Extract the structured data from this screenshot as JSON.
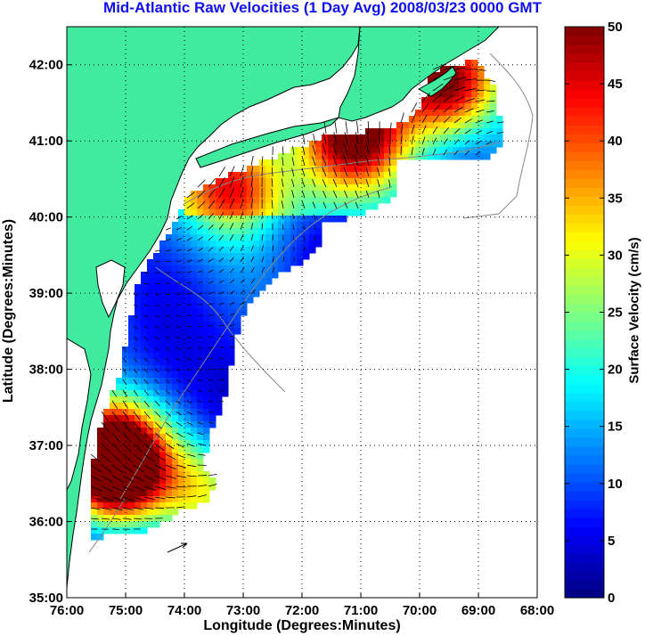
{
  "title": "Mid-Atlantic Raw Velocities (1 Day Avg) 2008/03/23 0000 GMT",
  "axes": {
    "xlabel": "Longitude (Degrees:Minutes)",
    "ylabel": "Latitude (Degrees:Minutes)",
    "x_ticks": [
      "76:00",
      "75:00",
      "74:00",
      "73:00",
      "72:00",
      "71:00",
      "70:00",
      "69:00",
      "68:00"
    ],
    "y_ticks": [
      "35:00",
      "36:00",
      "37:00",
      "38:00",
      "39:00",
      "40:00",
      "41:00",
      "42:00"
    ],
    "lon_range": [
      -76,
      -68
    ],
    "lat_range": [
      35,
      42.5
    ]
  },
  "colorbar": {
    "label": "Surface Velocity (cm/s)",
    "ticks": [
      "0",
      "5",
      "10",
      "15",
      "20",
      "25",
      "30",
      "35",
      "40",
      "45",
      "50"
    ],
    "range": [
      0,
      50
    ],
    "colormap": "jet"
  },
  "colors": {
    "land": "#40ea9e",
    "ocean": "#ffffff",
    "grid": "#000000",
    "bathymetry": "#888888",
    "arrows": "#000000"
  }
}
